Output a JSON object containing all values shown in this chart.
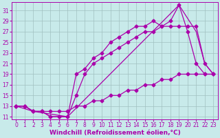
{
  "bg_color": "#c8eaea",
  "grid_color": "#a0c0c0",
  "line_color": "#aa00aa",
  "marker": "D",
  "markersize": 2.5,
  "linewidth": 0.9,
  "xlabel": "Windchill (Refroidissement éolien,°C)",
  "xlabel_fontsize": 6.5,
  "tick_fontsize": 5.5,
  "xlim": [
    -0.5,
    23.5
  ],
  "ylim": [
    10.5,
    32.5
  ],
  "yticks": [
    11,
    13,
    15,
    17,
    19,
    21,
    23,
    25,
    27,
    29,
    31
  ],
  "xticks": [
    0,
    1,
    2,
    3,
    4,
    5,
    6,
    7,
    8,
    9,
    10,
    11,
    12,
    13,
    14,
    15,
    16,
    17,
    18,
    19,
    20,
    21,
    22,
    23
  ],
  "lines": [
    {
      "x": [
        0,
        1,
        2,
        3,
        4,
        5,
        6,
        7,
        8,
        9,
        10,
        11,
        12,
        13,
        14,
        15,
        16,
        17,
        18,
        19,
        20,
        21,
        22,
        23
      ],
      "y": [
        13,
        13,
        12,
        12,
        12,
        12,
        12,
        13,
        13,
        14,
        14,
        15,
        15,
        16,
        16,
        17,
        17,
        18,
        18,
        19,
        19,
        19,
        19,
        19
      ]
    },
    {
      "x": [
        0,
        1,
        2,
        3,
        4,
        5,
        6,
        7,
        8,
        9,
        10,
        11,
        12,
        13,
        14,
        15,
        16,
        17,
        18,
        19,
        20,
        21,
        22,
        23
      ],
      "y": [
        13,
        13,
        12,
        12,
        11,
        11,
        11,
        15,
        19,
        21,
        22,
        23,
        24,
        25,
        26,
        27,
        27,
        28,
        28,
        28,
        28,
        28,
        21,
        19
      ]
    },
    {
      "x": [
        0,
        1,
        2,
        3,
        4,
        5,
        6,
        7,
        8,
        9,
        10,
        11,
        12,
        13,
        14,
        15,
        16,
        17,
        18,
        19,
        20,
        21,
        22,
        23
      ],
      "y": [
        13,
        13,
        12,
        12,
        11,
        11,
        11,
        19,
        20,
        22,
        23,
        25,
        26,
        27,
        28,
        28,
        29,
        28,
        29,
        32,
        27,
        21,
        19,
        19
      ]
    },
    {
      "x": [
        0,
        2,
        6,
        19,
        21,
        22,
        23
      ],
      "y": [
        13,
        12,
        11,
        32,
        27,
        21,
        19
      ]
    }
  ]
}
